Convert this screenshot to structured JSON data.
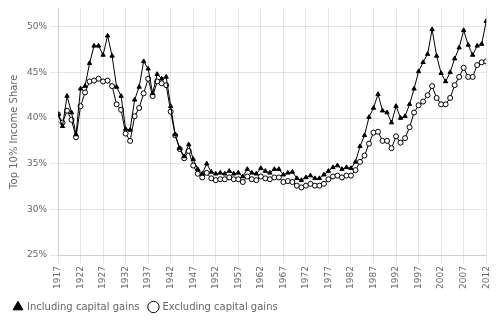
{
  "chart_data": {
    "type": "line",
    "ylabel": "Top 10% Income Share",
    "x": [
      1917,
      1918,
      1919,
      1920,
      1921,
      1922,
      1923,
      1924,
      1925,
      1926,
      1927,
      1928,
      1929,
      1930,
      1931,
      1932,
      1933,
      1934,
      1935,
      1936,
      1937,
      1938,
      1939,
      1940,
      1941,
      1942,
      1943,
      1944,
      1945,
      1946,
      1947,
      1948,
      1949,
      1950,
      1951,
      1952,
      1953,
      1954,
      1955,
      1956,
      1957,
      1958,
      1959,
      1960,
      1961,
      1962,
      1963,
      1964,
      1965,
      1966,
      1967,
      1968,
      1969,
      1970,
      1971,
      1972,
      1973,
      1974,
      1975,
      1976,
      1977,
      1978,
      1979,
      1980,
      1981,
      1982,
      1983,
      1984,
      1985,
      1986,
      1987,
      1988,
      1989,
      1990,
      1991,
      1992,
      1993,
      1994,
      1995,
      1996,
      1997,
      1998,
      1999,
      2000,
      2001,
      2002,
      2003,
      2004,
      2005,
      2006,
      2007,
      2008,
      2009,
      2010,
      2011,
      2012
    ],
    "series": [
      {
        "name": "Including capital gains",
        "color": "#000000",
        "marker": "triangle",
        "values": [
          0.404,
          0.391,
          0.424,
          0.406,
          0.382,
          0.432,
          0.435,
          0.46,
          0.479,
          0.479,
          0.469,
          0.49,
          0.468,
          0.434,
          0.424,
          0.388,
          0.387,
          0.42,
          0.434,
          0.462,
          0.454,
          0.427,
          0.448,
          0.443,
          0.445,
          0.413,
          0.382,
          0.367,
          0.358,
          0.371,
          0.355,
          0.344,
          0.339,
          0.35,
          0.341,
          0.339,
          0.34,
          0.339,
          0.342,
          0.339,
          0.34,
          0.336,
          0.344,
          0.34,
          0.339,
          0.345,
          0.342,
          0.34,
          0.344,
          0.344,
          0.338,
          0.34,
          0.341,
          0.334,
          0.332,
          0.335,
          0.337,
          0.334,
          0.334,
          0.338,
          0.342,
          0.346,
          0.348,
          0.344,
          0.346,
          0.345,
          0.352,
          0.369,
          0.381,
          0.401,
          0.411,
          0.426,
          0.408,
          0.406,
          0.395,
          0.413,
          0.4,
          0.402,
          0.415,
          0.432,
          0.451,
          0.461,
          0.47,
          0.497,
          0.468,
          0.449,
          0.44,
          0.45,
          0.465,
          0.477,
          0.496,
          0.48,
          0.469,
          0.479,
          0.481,
          0.506
        ]
      },
      {
        "name": "Excluding capital gains",
        "color": "#000000",
        "marker": "circle",
        "values": [
          0.404,
          0.395,
          0.408,
          0.398,
          0.379,
          0.413,
          0.428,
          0.44,
          0.441,
          0.443,
          0.44,
          0.441,
          0.435,
          0.415,
          0.409,
          0.383,
          0.375,
          0.402,
          0.411,
          0.427,
          0.443,
          0.424,
          0.44,
          0.438,
          0.436,
          0.407,
          0.381,
          0.366,
          0.356,
          0.364,
          0.348,
          0.339,
          0.335,
          0.34,
          0.334,
          0.332,
          0.333,
          0.333,
          0.335,
          0.333,
          0.333,
          0.33,
          0.336,
          0.333,
          0.332,
          0.336,
          0.334,
          0.333,
          0.335,
          0.335,
          0.33,
          0.331,
          0.33,
          0.326,
          0.324,
          0.326,
          0.328,
          0.326,
          0.326,
          0.328,
          0.333,
          0.336,
          0.337,
          0.335,
          0.337,
          0.337,
          0.343,
          0.352,
          0.359,
          0.372,
          0.384,
          0.385,
          0.375,
          0.375,
          0.367,
          0.38,
          0.373,
          0.378,
          0.39,
          0.406,
          0.414,
          0.418,
          0.425,
          0.435,
          0.422,
          0.415,
          0.415,
          0.422,
          0.436,
          0.445,
          0.455,
          0.445,
          0.445,
          0.458,
          0.461,
          0.462
        ]
      }
    ],
    "xlim": [
      1917,
      2012
    ],
    "xticks": [
      1917,
      1922,
      1927,
      1932,
      1937,
      1942,
      1947,
      1952,
      1957,
      1962,
      1967,
      1972,
      1977,
      1982,
      1987,
      1992,
      1997,
      2002,
      2007,
      2012
    ],
    "ylim": [
      0.25,
      0.52
    ],
    "yticks": [
      {
        "value": 0.25,
        "label": "25%"
      },
      {
        "value": 0.3,
        "label": "30%"
      },
      {
        "value": 0.35,
        "label": "35%"
      },
      {
        "value": 0.4,
        "label": "40%"
      },
      {
        "value": 0.45,
        "label": "45%"
      },
      {
        "value": 0.5,
        "label": "50%"
      }
    ],
    "grid": true,
    "legend": "lower left"
  }
}
